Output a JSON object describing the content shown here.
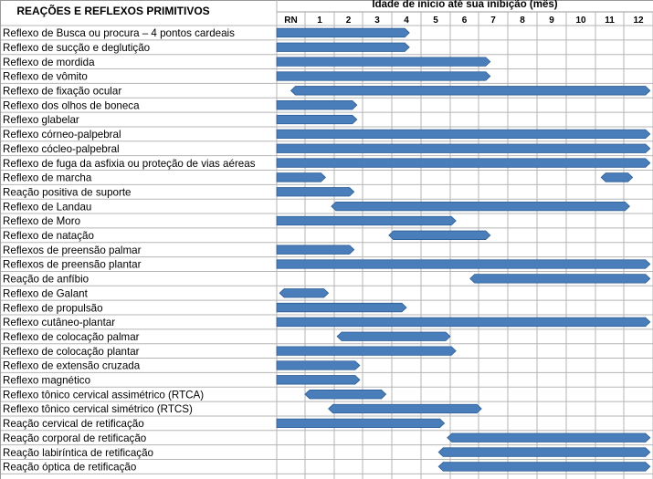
{
  "chart_data": {
    "type": "gantt",
    "title": "REAÇÕES E REFLEXOS PRIMITIVOS",
    "axis_title": "Idade de início até sua inibição (mês)",
    "x_tick_labels": [
      "RN",
      "1",
      "2",
      "3",
      "4",
      "5",
      "6",
      "7",
      "8",
      "9",
      "10",
      "11",
      "12"
    ],
    "xlim": [
      0,
      12
    ],
    "grid": true,
    "bar_color": "#4a7ebb",
    "bar_edge_color": "#2e5d95",
    "rows": [
      {
        "label": "Reflexo de Busca ou procura – 4 pontos cardeais",
        "start": 0,
        "end": 4.6
      },
      {
        "label": "Reflexo de sucção e deglutição",
        "start": 0,
        "end": 4.6
      },
      {
        "label": "Reflexo de mordida",
        "start": 0,
        "end": 7.4
      },
      {
        "label": "Reflexo de vômito",
        "start": 0,
        "end": 7.4
      },
      {
        "label": "Reflexo de fixação ocular",
        "start": 0.5,
        "end": 12.9
      },
      {
        "label": "Reflexo dos olhos de boneca",
        "start": 0,
        "end": 2.8
      },
      {
        "label": "Reflexo glabelar",
        "start": 0,
        "end": 2.8
      },
      {
        "label": "Reflexo córneo-palpebral",
        "start": 0,
        "end": 12.9
      },
      {
        "label": "Reflexo cócleo-palpebral",
        "start": 0,
        "end": 12.9
      },
      {
        "label": "Reflexo de fuga da asfixia ou proteção de vias aéreas",
        "start": 0,
        "end": 12.9
      },
      {
        "label": "Reflexo de marcha",
        "start": 0,
        "end": 1.7
      },
      {
        "label": "Reflexo de marcha",
        "start": 11.2,
        "end": 12.3
      },
      {
        "label": "Reação positiva de suporte",
        "start": 0,
        "end": 2.7
      },
      {
        "label": "Reflexo de Landau",
        "start": 1.9,
        "end": 12.2
      },
      {
        "label": "Reflexo de Moro",
        "start": 0,
        "end": 6.2
      },
      {
        "label": "Reflexo de natação",
        "start": 3.9,
        "end": 7.4
      },
      {
        "label": "Reflexos de preensão palmar",
        "start": 0,
        "end": 2.7
      },
      {
        "label": "Reflexos de preensão plantar",
        "start": 0,
        "end": 12.9
      },
      {
        "label": "Reação de anfíbio",
        "start": 6.7,
        "end": 12.9
      },
      {
        "label": "Reflexo de Galant",
        "start": 0.1,
        "end": 1.8
      },
      {
        "label": "Reflexo de propulsão",
        "start": 0,
        "end": 4.5
      },
      {
        "label": "Reflexo cutâneo-plantar",
        "start": 0,
        "end": 12.9
      },
      {
        "label": "Reflexo de colocação palmar",
        "start": 2.1,
        "end": 6.0
      },
      {
        "label": "Reflexo de colocação plantar",
        "start": 0,
        "end": 6.2
      },
      {
        "label": "Reflexo de extensão cruzada",
        "start": 0,
        "end": 2.9
      },
      {
        "label": "Reflexo magnético",
        "start": 0,
        "end": 2.9
      },
      {
        "label": "Reflexo tônico cervical assimétrico (RTCA)",
        "start": 1.0,
        "end": 3.8
      },
      {
        "label": "Reflexo tônico cervical simétrico (RTCS)",
        "start": 1.8,
        "end": 7.1
      },
      {
        "label": "Reação cervical de retificação",
        "start": 0,
        "end": 5.8
      },
      {
        "label": "Reação corporal de retificação",
        "start": 5.9,
        "end": 12.9
      },
      {
        "label": "Reação labiríntica de retificação",
        "start": 5.6,
        "end": 12.9
      },
      {
        "label": "Reação óptica de retificação",
        "start": 5.6,
        "end": 12.9
      }
    ]
  }
}
